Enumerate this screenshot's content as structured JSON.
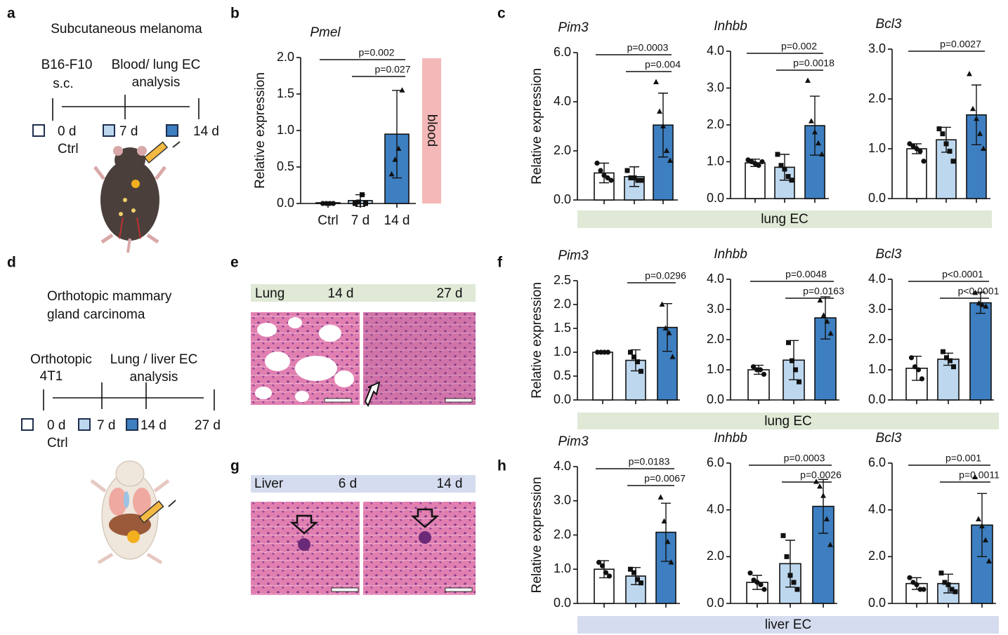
{
  "figure": {
    "letters": [
      "a",
      "b",
      "c",
      "d",
      "e",
      "f",
      "g",
      "h"
    ],
    "panel_a": {
      "title": "Subcutaneous melanoma",
      "events": [
        "B16-F10",
        "s.c.",
        "Blood/ lung EC",
        "analysis"
      ],
      "timepoints": [
        "0 d",
        "Ctrl",
        "7 d",
        "14 d"
      ]
    },
    "panel_d": {
      "title": [
        "Orthotopic mammary",
        "gland carcinoma"
      ],
      "events": [
        "Orthotopic",
        "4T1",
        "Lung / liver EC",
        "analysis"
      ],
      "timepoints": [
        "0 d",
        "Ctrl",
        "7 d",
        "14 d",
        "27 d"
      ]
    },
    "panel_e": {
      "tissue": "Lung",
      "times": [
        "14 d",
        "27 d"
      ]
    },
    "panel_g": {
      "tissue": "Liver",
      "times": [
        "6 d",
        "14 d"
      ]
    },
    "bands": {
      "b": "blood",
      "c": "lung EC",
      "f": "lung EC",
      "h": "liver EC"
    }
  },
  "chart_data": [
    {
      "type": "bar",
      "title": "Pmel",
      "ylabel": "Relative expression",
      "categories": [
        "Ctrl",
        "7 d",
        "14 d"
      ],
      "colors": [
        "#ffffff",
        "#bdd7ee",
        "#3d7fc1"
      ],
      "values": [
        0.01,
        0.04,
        0.95
      ],
      "errors": [
        0.01,
        0.08,
        0.6
      ],
      "points": [
        [
          0,
          0,
          0,
          0
        ],
        [
          0,
          0.02,
          0.12,
          0
        ],
        [
          0.4,
          0.6,
          0.75,
          1.55
        ]
      ],
      "ylim": [
        0,
        2
      ],
      "yticks": [
        {
          "value": 0,
          "label": "0.0"
        },
        {
          "value": 0.5,
          "label": "0.5"
        },
        {
          "value": 1,
          "label": "1.0"
        },
        {
          "value": 1.5,
          "label": "1.5"
        },
        {
          "value": 2,
          "label": "2.0"
        }
      ],
      "annotations": [
        {
          "text": "p=0.002",
          "span": [
            0,
            2
          ]
        },
        {
          "text": "p=0.027",
          "span": [
            1,
            2
          ]
        }
      ]
    },
    {
      "type": "bar",
      "title": "Pim3",
      "ylabel": "Relative expression",
      "categories": [
        null,
        null,
        null
      ],
      "colors": [
        "#ffffff",
        "#bdd7ee",
        "#3d7fc1"
      ],
      "values": [
        1.1,
        0.95,
        3.05
      ],
      "errors": [
        0.4,
        0.4,
        1.3
      ],
      "points": [
        [
          1.5,
          1.2,
          1.0,
          0.9,
          0.8
        ],
        [
          1.2,
          0.9,
          0.9,
          0.8,
          0.8
        ],
        [
          4.8,
          3.6,
          3.0,
          2.0,
          1.6
        ]
      ],
      "ylim": [
        0,
        6
      ],
      "yticks": [
        {
          "value": 0,
          "label": "0.0"
        },
        {
          "value": 2,
          "label": "2.0"
        },
        {
          "value": 4,
          "label": "4.0"
        },
        {
          "value": 6,
          "label": "6.0"
        }
      ],
      "annotations": [
        {
          "text": "p=0.0003",
          "span": [
            0,
            2
          ]
        },
        {
          "text": "p=0.004",
          "span": [
            1,
            2
          ]
        }
      ]
    },
    {
      "type": "bar",
      "title": "Inhbb",
      "categories": [
        null,
        null,
        null
      ],
      "colors": [
        "#ffffff",
        "#bdd7ee",
        "#3d7fc1"
      ],
      "values": [
        0.97,
        0.85,
        1.98
      ],
      "errors": [
        0.1,
        0.35,
        0.8
      ],
      "points": [
        [
          1.05,
          1.0,
          0.95,
          0.9,
          1.0
        ],
        [
          1.2,
          0.9,
          0.8,
          0.6,
          0.5
        ],
        [
          3.2,
          2.1,
          1.8,
          1.5,
          1.2
        ]
      ],
      "ylim": [
        0,
        4
      ],
      "yticks": [
        {
          "value": 0,
          "label": "0.0"
        },
        {
          "value": 1,
          "label": "1.0"
        },
        {
          "value": 2,
          "label": "2.0"
        },
        {
          "value": 3,
          "label": "3.0"
        },
        {
          "value": 4,
          "label": "4.0"
        }
      ],
      "annotations": [
        {
          "text": "p=0.002",
          "span": [
            0,
            2
          ]
        },
        {
          "text": "p=0.0018",
          "span": [
            1,
            2
          ]
        }
      ]
    },
    {
      "type": "bar",
      "title": "Bcl3",
      "categories": [
        null,
        null,
        null
      ],
      "colors": [
        "#ffffff",
        "#bdd7ee",
        "#3d7fc1"
      ],
      "values": [
        1.0,
        1.18,
        1.68
      ],
      "errors": [
        0.1,
        0.25,
        0.6
      ],
      "points": [
        [
          1.1,
          1.05,
          1.0,
          0.95,
          0.75
        ],
        [
          1.4,
          1.3,
          1.1,
          0.95,
          0.75
        ],
        [
          2.5,
          1.8,
          1.6,
          1.3,
          1.0
        ]
      ],
      "ylim": [
        0,
        3
      ],
      "yticks": [
        {
          "value": 0,
          "label": "0.0"
        },
        {
          "value": 1,
          "label": "1.0"
        },
        {
          "value": 2,
          "label": "2.0"
        },
        {
          "value": 3,
          "label": "3.0"
        }
      ],
      "annotations": [
        {
          "text": "p=0.0027",
          "span": [
            0,
            2
          ]
        }
      ]
    },
    {
      "type": "bar",
      "title": "Pim3",
      "ylabel": "Relative expression",
      "categories": [
        null,
        null,
        null
      ],
      "colors": [
        "#ffffff",
        "#bdd7ee",
        "#3d7fc1"
      ],
      "values": [
        1.0,
        0.83,
        1.52
      ],
      "errors": [
        0.01,
        0.22,
        0.5
      ],
      "points": [
        [
          1,
          1,
          1,
          1
        ],
        [
          1.0,
          0.9,
          0.8,
          0.6
        ],
        [
          2.0,
          1.5,
          1.4,
          0.9
        ]
      ],
      "ylim": [
        0,
        2.5
      ],
      "yticks": [
        {
          "value": 0,
          "label": "0.0"
        },
        {
          "value": 0.5,
          "label": "0.5"
        },
        {
          "value": 1,
          "label": "1.0"
        },
        {
          "value": 1.5,
          "label": "1.5"
        },
        {
          "value": 2,
          "label": "2.0"
        },
        {
          "value": 2.5,
          "label": "2.5"
        }
      ],
      "annotations": [
        {
          "text": "p=0.0296",
          "span": [
            1,
            2
          ]
        }
      ]
    },
    {
      "type": "bar",
      "title": "Inhbb",
      "categories": [
        null,
        null,
        null
      ],
      "colors": [
        "#ffffff",
        "#bdd7ee",
        "#3d7fc1"
      ],
      "values": [
        1.0,
        1.32,
        2.72
      ],
      "errors": [
        0.15,
        0.65,
        0.7
      ],
      "points": [
        [
          1.1,
          1.0,
          1.0,
          0.85
        ],
        [
          1.9,
          1.3,
          1.0,
          0.6
        ],
        [
          3.3,
          2.8,
          2.6,
          2.2
        ]
      ],
      "ylim": [
        0,
        4
      ],
      "yticks": [
        {
          "value": 0,
          "label": "0.0"
        },
        {
          "value": 1,
          "label": "1.0"
        },
        {
          "value": 2,
          "label": "2.0"
        },
        {
          "value": 3,
          "label": "3.0"
        },
        {
          "value": 4,
          "label": "4.0"
        }
      ],
      "annotations": [
        {
          "text": "p=0.0048",
          "span": [
            0,
            2
          ]
        },
        {
          "text": "p=0.0163",
          "span": [
            1,
            2
          ]
        }
      ]
    },
    {
      "type": "bar",
      "title": "Bcl3",
      "categories": [
        null,
        null,
        null
      ],
      "colors": [
        "#ffffff",
        "#bdd7ee",
        "#3d7fc1"
      ],
      "values": [
        1.05,
        1.35,
        3.22
      ],
      "errors": [
        0.4,
        0.2,
        0.35
      ],
      "points": [
        [
          1.4,
          1.1,
          1.0,
          0.7
        ],
        [
          1.6,
          1.4,
          1.3,
          1.1
        ],
        [
          3.55,
          3.2,
          3.15,
          3.1
        ]
      ],
      "ylim": [
        0,
        4
      ],
      "yticks": [
        {
          "value": 0,
          "label": "0.0"
        },
        {
          "value": 1,
          "label": "1.0"
        },
        {
          "value": 2,
          "label": "2.0"
        },
        {
          "value": 3,
          "label": "3.0"
        },
        {
          "value": 4,
          "label": "4.0"
        }
      ],
      "annotations": [
        {
          "text": "p<0.0001",
          "span": [
            0,
            2
          ]
        },
        {
          "text": "p<0.0001",
          "span": [
            1,
            2
          ]
        }
      ]
    },
    {
      "type": "bar",
      "title": "Pim3",
      "ylabel": "Relative expression",
      "categories": [
        null,
        null,
        null
      ],
      "colors": [
        "#ffffff",
        "#bdd7ee",
        "#3d7fc1"
      ],
      "values": [
        1.0,
        0.8,
        2.08
      ],
      "errors": [
        0.25,
        0.25,
        0.85
      ],
      "points": [
        [
          1.2,
          1.1,
          0.9,
          0.8
        ],
        [
          1.0,
          0.9,
          0.7,
          0.6
        ],
        [
          3.1,
          2.4,
          1.8,
          1.2
        ]
      ],
      "ylim": [
        0,
        4
      ],
      "yticks": [
        {
          "value": 0,
          "label": "0.0"
        },
        {
          "value": 1,
          "label": "1.0"
        },
        {
          "value": 2,
          "label": "2.0"
        },
        {
          "value": 3,
          "label": "3.0"
        },
        {
          "value": 4,
          "label": "4.0"
        }
      ],
      "annotations": [
        {
          "text": "p=0.0183",
          "span": [
            0,
            2
          ]
        },
        {
          "text": "p=0.0067",
          "span": [
            1,
            2
          ]
        }
      ]
    },
    {
      "type": "bar",
      "title": "Inhbb",
      "categories": [
        null,
        null,
        null
      ],
      "colors": [
        "#ffffff",
        "#bdd7ee",
        "#3d7fc1"
      ],
      "values": [
        0.9,
        1.7,
        4.15
      ],
      "errors": [
        0.3,
        1.0,
        1.15
      ],
      "points": [
        [
          1.3,
          1.0,
          0.9,
          0.8,
          0.6
        ],
        [
          2.9,
          2.0,
          1.2,
          0.9,
          0.6
        ],
        [
          5.2,
          5.0,
          4.6,
          3.6,
          2.5
        ]
      ],
      "ylim": [
        0,
        6
      ],
      "yticks": [
        {
          "value": 0,
          "label": "0.0"
        },
        {
          "value": 2,
          "label": "2.0"
        },
        {
          "value": 4,
          "label": "4.0"
        },
        {
          "value": 6,
          "label": "6.0"
        }
      ],
      "annotations": [
        {
          "text": "p=0.0003",
          "span": [
            0,
            2
          ]
        },
        {
          "text": "p=0.0026",
          "span": [
            1,
            2
          ]
        }
      ]
    },
    {
      "type": "bar",
      "title": "Bcl3",
      "categories": [
        null,
        null,
        null
      ],
      "colors": [
        "#ffffff",
        "#bdd7ee",
        "#3d7fc1"
      ],
      "values": [
        0.85,
        0.85,
        3.35
      ],
      "errors": [
        0.25,
        0.4,
        1.35
      ],
      "points": [
        [
          1.1,
          0.9,
          0.8,
          0.6,
          0.6
        ],
        [
          1.3,
          0.9,
          0.8,
          0.6,
          0.5
        ],
        [
          5.4,
          3.6,
          3.3,
          2.7,
          1.8
        ]
      ],
      "ylim": [
        0,
        6
      ],
      "yticks": [
        {
          "value": 0,
          "label": "0.0"
        },
        {
          "value": 2,
          "label": "2.0"
        },
        {
          "value": 4,
          "label": "4.0"
        },
        {
          "value": 6,
          "label": "6.0"
        }
      ],
      "annotations": [
        {
          "text": "p=0.001",
          "span": [
            0,
            2
          ]
        },
        {
          "text": "p=0.0011",
          "span": [
            1,
            2
          ]
        }
      ]
    }
  ]
}
